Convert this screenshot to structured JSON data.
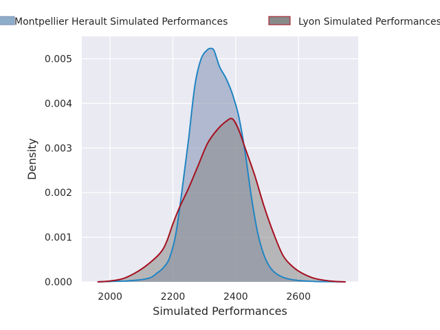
{
  "chart_data": {
    "type": "area",
    "title": "",
    "xlabel": "Simulated Performances",
    "ylabel": "Density",
    "xlim": [
      1910,
      2790
    ],
    "ylim": [
      0,
      0.0055
    ],
    "x_ticks": [
      2000,
      2200,
      2400,
      2600
    ],
    "x_tick_labels": [
      "2000",
      "2200",
      "2400",
      "2600"
    ],
    "y_ticks": [
      0,
      0.001,
      0.002,
      0.003,
      0.004,
      0.005
    ],
    "y_tick_labels": [
      "0.000",
      "0.001",
      "0.002",
      "0.003",
      "0.004",
      "0.005"
    ],
    "grid": true,
    "legend_position": "top",
    "series": [
      {
        "name": "Montpellier Herault Simulated Performances",
        "line_color": "#1f84c2",
        "fill_color": "#7f8fb3",
        "fill_opacity": 0.55,
        "x": [
          1960,
          2000,
          2050,
          2100,
          2130,
          2150,
          2170,
          2190,
          2210,
          2230,
          2250,
          2270,
          2290,
          2310,
          2320,
          2330,
          2340,
          2350,
          2370,
          2390,
          2410,
          2430,
          2450,
          2470,
          2490,
          2510,
          2530,
          2560,
          2600,
          2650,
          2700,
          2750
        ],
        "y": [
          0,
          1e-05,
          2e-05,
          5e-05,
          0.0001,
          0.0002,
          0.00032,
          0.00055,
          0.0011,
          0.0021,
          0.0032,
          0.0044,
          0.005,
          0.0052,
          0.00523,
          0.0052,
          0.005,
          0.0048,
          0.00455,
          0.0042,
          0.0037,
          0.0029,
          0.0019,
          0.0011,
          0.0006,
          0.00032,
          0.00018,
          8e-05,
          3e-05,
          1e-05,
          5e-06,
          0
        ]
      },
      {
        "name": "Lyon Simulated Performances",
        "line_color": "#a50f1e",
        "fill_color": "#8a8a8a",
        "fill_opacity": 0.55,
        "x": [
          1960,
          2000,
          2040,
          2080,
          2120,
          2160,
          2180,
          2200,
          2220,
          2250,
          2280,
          2310,
          2340,
          2370,
          2390,
          2410,
          2430,
          2460,
          2490,
          2520,
          2550,
          2580,
          2610,
          2650,
          2700,
          2750
        ],
        "y": [
          0,
          2e-05,
          7e-05,
          0.0002,
          0.00039,
          0.00065,
          0.0009,
          0.0013,
          0.00165,
          0.0021,
          0.0026,
          0.0031,
          0.0034,
          0.0036,
          0.00365,
          0.0034,
          0.003,
          0.0024,
          0.0017,
          0.0011,
          0.0006,
          0.00035,
          0.0002,
          8e-05,
          2e-05,
          0
        ]
      }
    ]
  }
}
